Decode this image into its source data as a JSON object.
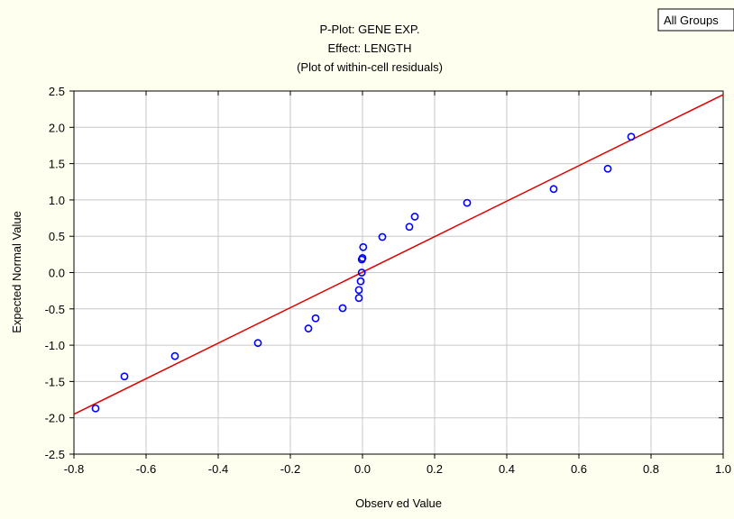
{
  "chart_data": {
    "type": "scatter",
    "title": [
      "P-Plot: GENE EXP.",
      "Effect: LENGTH",
      "(Plot of  within-cell residuals)"
    ],
    "legend_label": "All Groups",
    "xlabel": "Observ ed Value",
    "ylabel": "Expected Normal Value",
    "xlim": [
      -0.8,
      1.0
    ],
    "ylim": [
      -2.5,
      2.5
    ],
    "x_ticks": [
      -0.8,
      -0.6,
      -0.4,
      -0.2,
      0.0,
      0.2,
      0.4,
      0.6,
      0.8,
      1.0
    ],
    "x_tick_labels": [
      "-0.8",
      "-0.6",
      "-0.4",
      "-0.2",
      "0.0",
      "0.2",
      "0.4",
      "0.6",
      "0.8",
      "1.0"
    ],
    "y_ticks": [
      -2.5,
      -2.0,
      -1.5,
      -1.0,
      -0.5,
      0.0,
      0.5,
      1.0,
      1.5,
      2.0,
      2.5
    ],
    "y_tick_labels": [
      "-2.5",
      "-2.0",
      "-1.5",
      "-1.0",
      "-0.5",
      "0.0",
      "0.5",
      "1.0",
      "1.5",
      "2.0",
      "2.5"
    ],
    "grid": true,
    "points": [
      {
        "x": -0.74,
        "y": -1.87
      },
      {
        "x": -0.66,
        "y": -1.43
      },
      {
        "x": -0.52,
        "y": -1.15
      },
      {
        "x": -0.29,
        "y": -0.97
      },
      {
        "x": -0.15,
        "y": -0.77
      },
      {
        "x": -0.13,
        "y": -0.63
      },
      {
        "x": -0.055,
        "y": -0.49
      },
      {
        "x": -0.01,
        "y": -0.35
      },
      {
        "x": -0.01,
        "y": -0.24
      },
      {
        "x": -0.005,
        "y": -0.12
      },
      {
        "x": -0.002,
        "y": 0.0
      },
      {
        "x": -0.002,
        "y": 0.18
      },
      {
        "x": 0.0,
        "y": 0.2
      },
      {
        "x": 0.002,
        "y": 0.35
      },
      {
        "x": 0.055,
        "y": 0.49
      },
      {
        "x": 0.13,
        "y": 0.63
      },
      {
        "x": 0.145,
        "y": 0.77
      },
      {
        "x": 0.29,
        "y": 0.96
      },
      {
        "x": 0.53,
        "y": 1.15
      },
      {
        "x": 0.68,
        "y": 1.43
      },
      {
        "x": 0.745,
        "y": 1.87
      }
    ],
    "fit_line": {
      "x": [
        -0.8,
        1.0
      ],
      "y": [
        -1.95,
        2.45
      ]
    },
    "colors": {
      "points": "#0000ff",
      "line": "#e00000",
      "grid": "#c8c8c8",
      "background": "#fffff0"
    }
  }
}
